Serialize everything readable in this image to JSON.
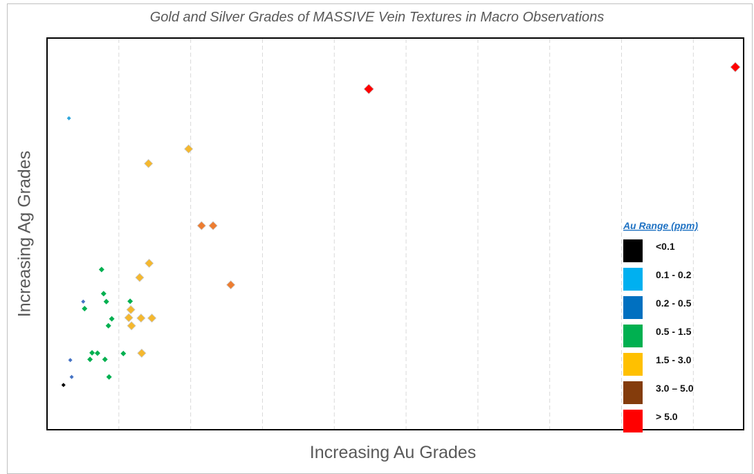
{
  "chart_data": {
    "type": "scatter",
    "title": "Gold and Silver Grades of MASSIVE Vein Textures in Macro Observations",
    "xlabel": "Increasing Au Grades",
    "ylabel": "Increasing Ag Grades",
    "xlim": [
      0,
      100
    ],
    "ylim": [
      0,
      100
    ],
    "grid": "vertical dashed",
    "legend_position": "bottom-right",
    "legend": {
      "title": "Au Range (ppm)",
      "entries": [
        {
          "label": "<0.1",
          "color": "#000000"
        },
        {
          "label": "0.1 - 0.2",
          "color": "#00b0f0"
        },
        {
          "label": "0.2 - 0.5",
          "color": "#0070c0"
        },
        {
          "label": "0.5 - 1.5",
          "color": "#00b050"
        },
        {
          "label": "1.5 - 3.0",
          "color": "#ffc000"
        },
        {
          "label": "3.0 – 5.0",
          "color": "#843c0c"
        },
        {
          "label": "> 5.0",
          "color": "#ff0000"
        }
      ]
    },
    "series": [
      {
        "range": "<0.1",
        "color": "#000000",
        "size": 3,
        "points": [
          [
            1.2,
            6.0
          ]
        ]
      },
      {
        "range": "0.1 - 0.2",
        "color": "#2ea6dc",
        "size": 3,
        "points": [
          [
            2.0,
            79.0
          ]
        ]
      },
      {
        "range": "0.2 - 0.5",
        "color": "#4472c4",
        "size": 3,
        "points": [
          [
            2.2,
            12.8
          ],
          [
            2.4,
            8.2
          ],
          [
            4.1,
            28.8
          ]
        ]
      },
      {
        "range": "0.5 - 1.5",
        "color": "#00b050",
        "size": 4,
        "points": [
          [
            6.8,
            37.6
          ],
          [
            4.3,
            26.9
          ],
          [
            7.1,
            31.0
          ],
          [
            7.5,
            28.8
          ],
          [
            8.3,
            24.1
          ],
          [
            7.8,
            22.2
          ],
          [
            11.0,
            28.9
          ],
          [
            5.4,
            14.8
          ],
          [
            6.2,
            14.7
          ],
          [
            5.1,
            13.0
          ],
          [
            7.3,
            13.0
          ],
          [
            10.0,
            14.6
          ],
          [
            7.9,
            8.2
          ]
        ]
      },
      {
        "range": "1.5 - 3.0",
        "color": "#f5b82e",
        "size": 6,
        "points": [
          [
            19.6,
            70.6
          ],
          [
            13.7,
            66.6
          ],
          [
            13.8,
            39.3
          ],
          [
            12.4,
            35.4
          ],
          [
            11.1,
            26.6
          ],
          [
            10.8,
            24.4
          ],
          [
            12.6,
            24.3
          ],
          [
            14.2,
            24.3
          ],
          [
            11.2,
            22.2
          ],
          [
            12.7,
            14.7
          ]
        ]
      },
      {
        "range": "3.0 – 5.0",
        "color": "#ed7d31",
        "size": 6,
        "points": [
          [
            21.5,
            49.6
          ],
          [
            23.2,
            49.6
          ],
          [
            25.8,
            33.4
          ]
        ]
      },
      {
        "range": "> 5.0",
        "color": "#ff0000",
        "size": 7,
        "points": [
          [
            46.1,
            87.0
          ],
          [
            100.0,
            93.0
          ]
        ]
      }
    ]
  }
}
